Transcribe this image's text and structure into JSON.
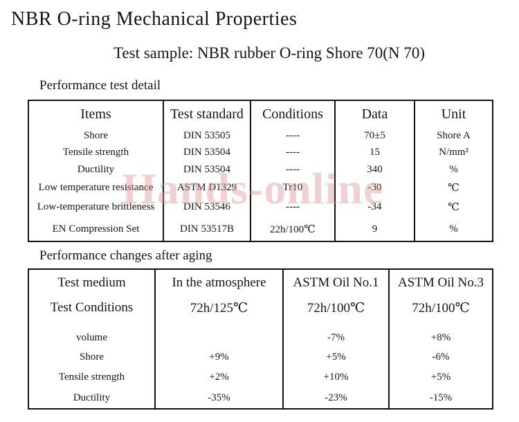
{
  "page": {
    "title": "NBR O-ring Mechanical Properties",
    "subtitle": "Test sample: NBR rubber O-ring Shore 70(N 70)"
  },
  "watermark": {
    "text": "Hands-online",
    "color": "#dd9494"
  },
  "section1": {
    "heading": "Performance test detail",
    "table": {
      "headers": [
        "Items",
        "Test standard",
        "Conditions",
        "Data",
        "Unit"
      ],
      "rows": [
        [
          "Shore",
          "DIN 53505",
          "----",
          "70±5",
          "Shore A"
        ],
        [
          "Tensile strength",
          "DIN 53504",
          "----",
          "15",
          "N/mm²"
        ],
        [
          "Ductility",
          "DIN 53504",
          "----",
          "340",
          "%"
        ],
        [
          "Low temperature resistance",
          "ASTM D1329",
          "Tr10",
          "-30",
          "℃"
        ],
        [
          "Low-temperature brittleness",
          "DIN 53546",
          "----",
          "-34",
          "℃"
        ],
        [
          "EN Compression Set",
          "DIN 53517B",
          "22h/100℃",
          "9",
          "%"
        ]
      ]
    }
  },
  "section2": {
    "heading": "Performance changes after aging",
    "table": {
      "header_rows": [
        [
          "Test medium",
          "In the atmosphere",
          "ASTM Oil No.1",
          "ASTM Oil No.3"
        ],
        [
          "Test Conditions",
          "72h/125℃",
          "72h/100℃",
          "72h/100℃"
        ]
      ],
      "rows": [
        [
          "volume",
          "",
          "-7%",
          "+8%"
        ],
        [
          "Shore",
          "+9%",
          "+5%",
          "-6%"
        ],
        [
          "Tensile strength",
          "+2%",
          "+10%",
          "+5%"
        ],
        [
          "Ductility",
          "-35%",
          "-23%",
          "-15%"
        ]
      ]
    }
  }
}
